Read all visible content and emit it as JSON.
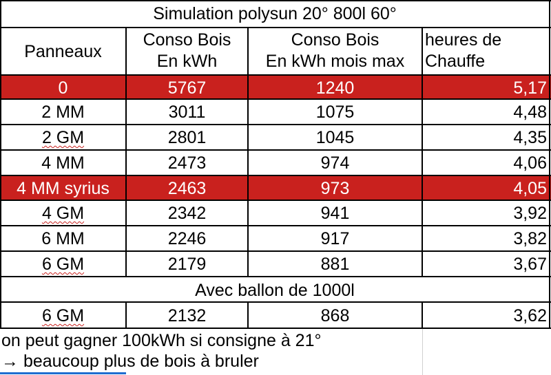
{
  "title": "Simulation polysun 20° 800l 60°",
  "headers": {
    "panneaux": "Panneaux",
    "conso_line1": "Conso Bois",
    "conso_line2": "En kWh",
    "max_line1": "Conso Bois",
    "max_line2": "En kWh mois max",
    "heures_line1": "heures de",
    "heures_line2": "Chauffe"
  },
  "rows": [
    {
      "panneaux": "0",
      "conso": "5767",
      "max": "1240",
      "heures": "5,17",
      "highlight": true
    },
    {
      "panneaux": "2 MM",
      "conso": "3011",
      "max": "1075",
      "heures": "4,48",
      "highlight": false
    },
    {
      "panneaux": "2 GM",
      "conso": "2801",
      "max": "1045",
      "heures": "4,35",
      "highlight": false
    },
    {
      "panneaux": "4 MM",
      "conso": "2473",
      "max": "974",
      "heures": "4,06",
      "highlight": false
    },
    {
      "panneaux": "4 MM syrius",
      "conso": "2463",
      "max": "973",
      "heures": "4,05",
      "highlight": true
    },
    {
      "panneaux": "4 GM",
      "conso": "2342",
      "max": "941",
      "heures": "3,92",
      "highlight": false
    },
    {
      "panneaux": "6 MM",
      "conso": "2246",
      "max": "917",
      "heures": "3,82",
      "highlight": false
    },
    {
      "panneaux": "6 GM",
      "conso": "2179",
      "max": "881",
      "heures": "3,67",
      "highlight": false
    }
  ],
  "section_title": "Avec ballon de 1000l",
  "extra_row": {
    "panneaux": "6 GM",
    "conso": "2132",
    "max": "868",
    "heures": "3,62"
  },
  "notes": [
    "on peut gagner 100kWh si consigne à 21°",
    "→ beaucoup plus de bois à bruler"
  ],
  "colors": {
    "highlight": "#c9211e",
    "grid": "#000000"
  }
}
